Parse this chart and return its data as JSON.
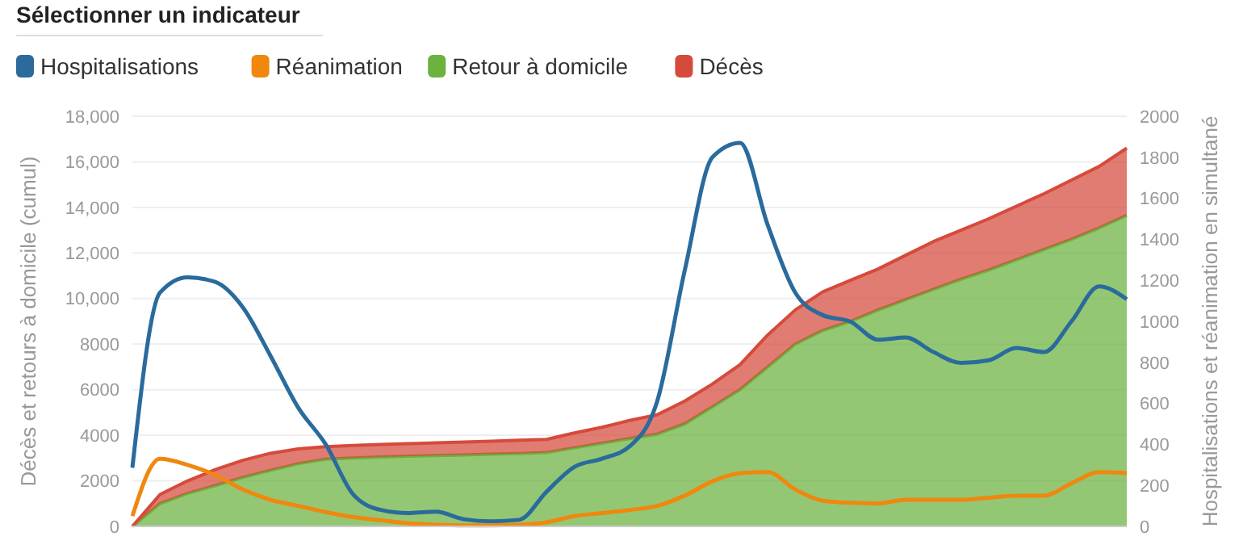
{
  "chart_data": {
    "type": "area",
    "title": "Sélectionner un indicateur",
    "ylabel": "Décès et retours à domicile (cumul)",
    "y2label": "Hospitalisations et réanimation en simultané",
    "categories": [
      null,
      null,
      null,
      null,
      null,
      null,
      null,
      null,
      null,
      null,
      null,
      null,
      null,
      null,
      null,
      null,
      null,
      null,
      null,
      null,
      null,
      null,
      null,
      null,
      null,
      null,
      null,
      null,
      null,
      null,
      null,
      null,
      null,
      null,
      null,
      null,
      null
    ],
    "series": [
      {
        "name": "Hospitalisations",
        "type": "line",
        "axis": "y2",
        "color": "#2a6b9c",
        "values": [
          286,
          1140,
          1215,
          1192,
          1068,
          832,
          580,
          400,
          155,
          80,
          65,
          72,
          35,
          25,
          32,
          170,
          290,
          330,
          390,
          610,
          1250,
          1800,
          1870,
          1470,
          1140,
          1030,
          998,
          910,
          921,
          850,
          797,
          810,
          870,
          850,
          1000,
          1170,
          1108
        ]
      },
      {
        "name": "Réanimation",
        "type": "line",
        "axis": "y2",
        "color": "#f0870f",
        "values": [
          50,
          330,
          300,
          250,
          180,
          130,
          100,
          70,
          45,
          30,
          15,
          8,
          5,
          5,
          8,
          20,
          50,
          65,
          80,
          100,
          150,
          220,
          260,
          265,
          180,
          125,
          115,
          112,
          130,
          130,
          130,
          140,
          150,
          150,
          210,
          265,
          260
        ]
      },
      {
        "name": "Retour à domicile",
        "color": "#6bb23e",
        "values": [
          0,
          1000,
          1450,
          1790,
          2150,
          2460,
          2750,
          2950,
          3000,
          3050,
          3080,
          3110,
          3140,
          3170,
          3200,
          3240,
          3450,
          3650,
          3850,
          4050,
          4500,
          5250,
          6000,
          7000,
          8000,
          8600,
          9000,
          9500,
          9950,
          10400,
          10850,
          11250,
          11700,
          12150,
          12600,
          13100,
          13650
        ]
      },
      {
        "name": "Décès",
        "color": "#d64a3b",
        "values": [
          0,
          400,
          550,
          700,
          750,
          750,
          650,
          550,
          550,
          550,
          550,
          560,
          560,
          570,
          580,
          580,
          650,
          700,
          800,
          850,
          1000,
          1000,
          1100,
          1400,
          1500,
          1700,
          1800,
          1800,
          1950,
          2100,
          2150,
          2250,
          2350,
          2450,
          2600,
          2700,
          2950
        ]
      }
    ],
    "stacked": true,
    "ylim": [
      0,
      18000
    ],
    "yticks": [
      0,
      2000,
      4000,
      6000,
      8000,
      {
        "value": 10000,
        "label": "10,000"
      },
      {
        "value": 12000,
        "label": "12,000"
      },
      {
        "value": 14000,
        "label": "14,000"
      },
      {
        "value": 16000,
        "label": "16,000"
      },
      {
        "value": 18000,
        "label": "18,000"
      }
    ],
    "y2lim": [
      0,
      2000
    ],
    "y2ticks": [
      0,
      200,
      400,
      600,
      800,
      1000,
      1200,
      1400,
      1600,
      1800,
      2000
    ],
    "grid": "y",
    "legend": "top left",
    "tick_labels": "y"
  }
}
